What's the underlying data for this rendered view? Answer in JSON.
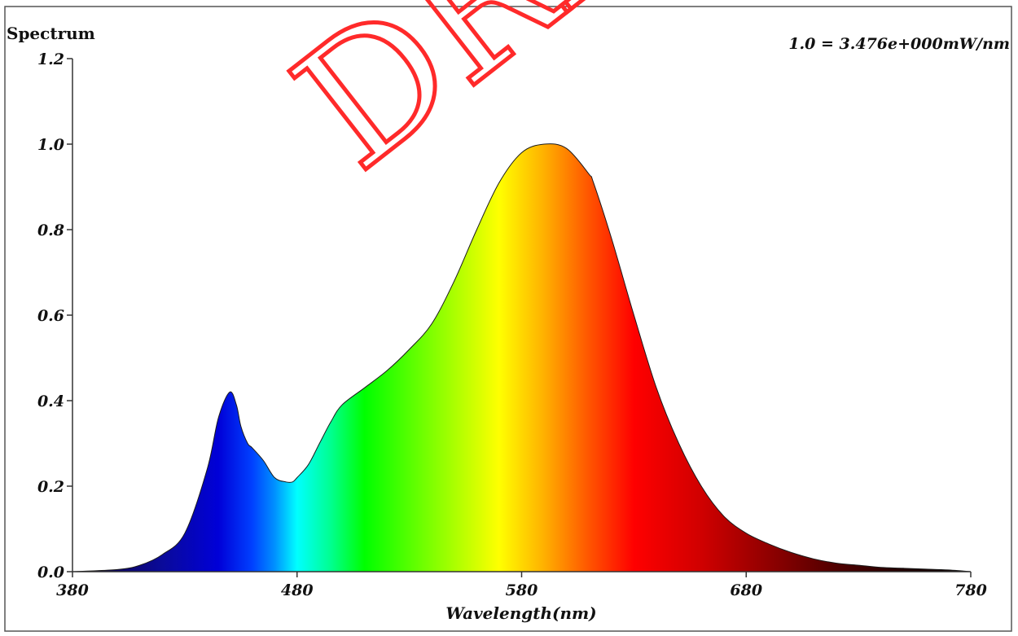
{
  "chart_data": {
    "type": "area",
    "title": "Spectrum",
    "scale_note": "1.0 = 3.476e+000mW/nm",
    "xlabel": "Wavelength(nm)",
    "ylabel": "",
    "xlim": [
      380,
      780
    ],
    "ylim": [
      0,
      1.2
    ],
    "x_ticks": [
      380,
      480,
      580,
      680,
      780
    ],
    "y_tick_labels": [
      "0.0",
      "0.2",
      "0.4",
      "0.6",
      "0.8",
      "1.0",
      "1.2"
    ],
    "grid": false,
    "fill": "wavelength-colored spectrum",
    "series": [
      {
        "x": [
          380,
          400,
          410,
          420,
          430,
          440,
          445,
          450,
          453,
          455,
          458,
          460,
          465,
          470,
          475,
          478,
          480,
          485,
          490,
          495,
          500,
          510,
          520,
          530,
          540,
          550,
          560,
          570,
          580,
          590,
          600,
          610,
          612,
          620,
          630,
          640,
          650,
          660,
          670,
          680,
          690,
          700,
          710,
          720,
          730,
          740,
          750,
          760,
          770,
          780
        ],
        "y": [
          0.0,
          0.005,
          0.015,
          0.04,
          0.09,
          0.24,
          0.36,
          0.42,
          0.39,
          0.34,
          0.3,
          0.29,
          0.26,
          0.22,
          0.21,
          0.21,
          0.22,
          0.25,
          0.3,
          0.35,
          0.39,
          0.43,
          0.47,
          0.52,
          0.58,
          0.68,
          0.8,
          0.91,
          0.98,
          1.0,
          0.99,
          0.93,
          0.91,
          0.78,
          0.6,
          0.43,
          0.3,
          0.2,
          0.13,
          0.09,
          0.065,
          0.045,
          0.03,
          0.02,
          0.015,
          0.01,
          0.008,
          0.006,
          0.004,
          0.0
        ]
      }
    ]
  },
  "watermark": {
    "text": "DRA",
    "color": "#ff2a2a"
  }
}
